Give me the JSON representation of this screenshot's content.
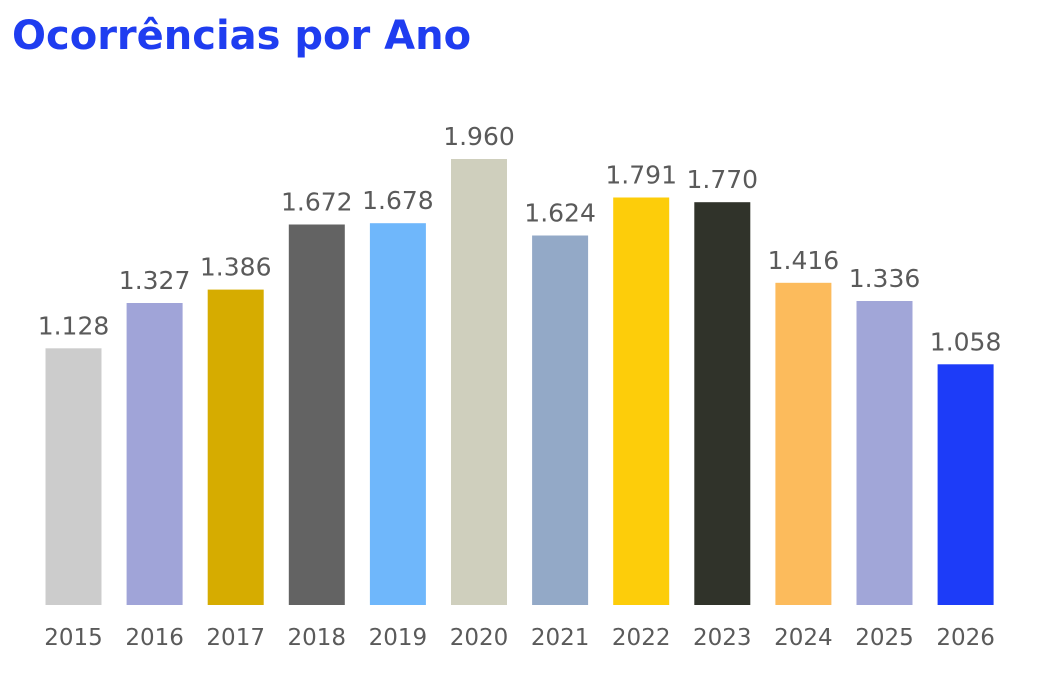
{
  "chart_data": {
    "type": "bar",
    "title": "Ocorrências por Ano",
    "xlabel": "",
    "ylabel": "",
    "ylim": [
      0,
      1960
    ],
    "grid": false,
    "categories": [
      "2015",
      "2016",
      "2017",
      "2018",
      "2019",
      "2020",
      "2021",
      "2022",
      "2023",
      "2024",
      "2025",
      "2026"
    ],
    "values": [
      1128,
      1327,
      1386,
      1672,
      1678,
      1960,
      1624,
      1791,
      1770,
      1416,
      1336,
      1058
    ],
    "value_labels": [
      "1.128",
      "1.327",
      "1.386",
      "1.672",
      "1.678",
      "1.960",
      "1.624",
      "1.791",
      "1.770",
      "1.416",
      "1.336",
      "1.058"
    ],
    "colors": [
      "#cccccc",
      "#a0a4d8",
      "#d6ac00",
      "#636363",
      "#6fb7fb",
      "#cfcfbd",
      "#93a9c7",
      "#fdcd0a",
      "#30332a",
      "#fcbb5c",
      "#a1a6d8",
      "#1d3cf8"
    ]
  }
}
